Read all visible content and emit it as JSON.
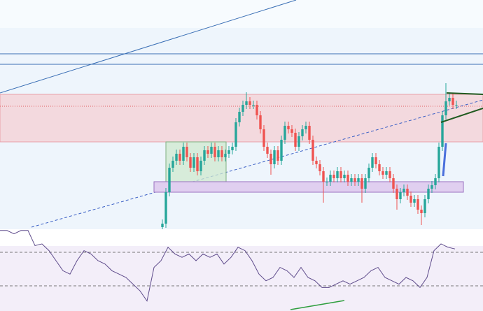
{
  "chart_data": [
    {
      "type": "candlestick",
      "up_color": "#26a69a",
      "down_color": "#ef5350",
      "ylim": [
        0,
        330
      ],
      "open": [
        5,
        10,
        55,
        90,
        100,
        110,
        100,
        120,
        105,
        90,
        105,
        85,
        100,
        115,
        110,
        120,
        105,
        115,
        105,
        110,
        115,
        120,
        155,
        170,
        180,
        185,
        180,
        180,
        165,
        145,
        120,
        110,
        95,
        115,
        100,
        130,
        150,
        145,
        140,
        120,
        135,
        145,
        150,
        130,
        100,
        95,
        85,
        70,
        70,
        80,
        75,
        85,
        75,
        80,
        70,
        75,
        70,
        75,
        60,
        75,
        90,
        105,
        95,
        85,
        80,
        85,
        75,
        60,
        45,
        55,
        60,
        50,
        40,
        45,
        30,
        25,
        45,
        60,
        65,
        75,
        120,
        165,
        185,
        190,
        180
      ],
      "high": [
        16,
        61,
        96,
        106,
        116,
        116,
        126,
        126,
        111,
        111,
        111,
        106,
        121,
        121,
        126,
        126,
        121,
        121,
        116,
        121,
        126,
        161,
        176,
        186,
        198,
        191,
        186,
        186,
        171,
        151,
        126,
        116,
        121,
        121,
        136,
        156,
        156,
        151,
        146,
        141,
        151,
        156,
        156,
        136,
        106,
        101,
        91,
        76,
        86,
        86,
        91,
        91,
        86,
        86,
        81,
        81,
        81,
        81,
        81,
        96,
        111,
        111,
        101,
        91,
        91,
        91,
        81,
        66,
        61,
        66,
        66,
        56,
        51,
        51,
        36,
        51,
        66,
        71,
        81,
        126,
        171,
        211,
        196,
        196,
        186
      ],
      "low": [
        2,
        4,
        49,
        84,
        94,
        94,
        94,
        99,
        84,
        84,
        79,
        79,
        94,
        104,
        104,
        99,
        99,
        99,
        99,
        104,
        109,
        114,
        149,
        164,
        174,
        174,
        174,
        159,
        139,
        114,
        104,
        80,
        89,
        94,
        94,
        124,
        139,
        134,
        114,
        114,
        129,
        139,
        124,
        94,
        89,
        79,
        40,
        64,
        64,
        69,
        69,
        69,
        69,
        64,
        64,
        64,
        64,
        40,
        54,
        69,
        84,
        89,
        79,
        74,
        74,
        69,
        54,
        30,
        39,
        49,
        44,
        34,
        34,
        24,
        8,
        19,
        39,
        54,
        59,
        69,
        114,
        159,
        179,
        174,
        174
      ],
      "close": [
        10,
        55,
        90,
        100,
        110,
        100,
        120,
        105,
        90,
        105,
        85,
        100,
        115,
        110,
        120,
        105,
        115,
        105,
        110,
        115,
        120,
        155,
        170,
        180,
        185,
        180,
        180,
        165,
        145,
        120,
        110,
        95,
        115,
        100,
        130,
        150,
        145,
        140,
        120,
        135,
        145,
        150,
        130,
        100,
        95,
        85,
        70,
        70,
        80,
        75,
        85,
        75,
        80,
        70,
        75,
        70,
        75,
        60,
        75,
        90,
        105,
        95,
        85,
        80,
        85,
        75,
        60,
        45,
        55,
        60,
        50,
        40,
        45,
        30,
        25,
        45,
        60,
        65,
        75,
        120,
        165,
        185,
        190,
        180,
        180
      ]
    },
    {
      "type": "line",
      "color": "#5e4b8b",
      "ylim": [
        0,
        100
      ],
      "levels": [
        30,
        70
      ],
      "values": [
        96,
        96,
        92,
        96,
        96,
        78,
        80,
        72,
        60,
        48,
        44,
        60,
        72,
        68,
        60,
        56,
        48,
        44,
        40,
        32,
        24,
        12,
        52,
        60,
        76,
        68,
        64,
        68,
        60,
        68,
        64,
        68,
        56,
        64,
        76,
        72,
        60,
        44,
        36,
        40,
        52,
        48,
        40,
        52,
        40,
        36,
        28,
        28,
        32,
        36,
        32,
        36,
        40,
        48,
        52,
        40,
        36,
        32,
        40,
        36,
        28,
        40,
        72,
        80,
        76,
        74
      ]
    }
  ]
}
